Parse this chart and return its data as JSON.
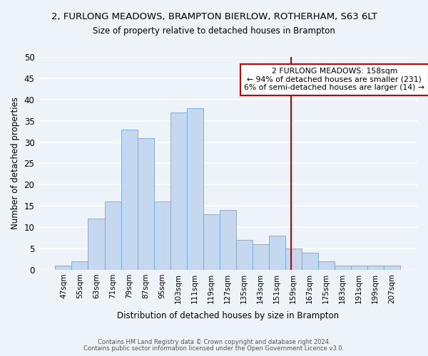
{
  "title": "2, FURLONG MEADOWS, BRAMPTON BIERLOW, ROTHERHAM, S63 6LT",
  "subtitle": "Size of property relative to detached houses in Brampton",
  "xlabel": "Distribution of detached houses by size in Brampton",
  "ylabel": "Number of detached properties",
  "bar_color": "#c5d8f0",
  "bar_edge_color": "#6eaadb",
  "bg_color": "#eef2f9",
  "grid_color": "#ffffff",
  "categories": [
    "47sqm",
    "55sqm",
    "63sqm",
    "71sqm",
    "79sqm",
    "87sqm",
    "95sqm",
    "103sqm",
    "111sqm",
    "119sqm",
    "127sqm",
    "135sqm",
    "143sqm",
    "151sqm",
    "159sqm",
    "167sqm",
    "175sqm",
    "183sqm",
    "191sqm",
    "199sqm",
    "207sqm"
  ],
  "values": [
    1,
    2,
    12,
    16,
    33,
    31,
    16,
    37,
    38,
    13,
    14,
    7,
    6,
    8,
    5,
    4,
    2,
    1,
    1,
    1,
    1
  ],
  "vline_color": "#cc0000",
  "annotation_text": "2 FURLONG MEADOWS: 158sqm\n← 94% of detached houses are smaller (231)\n6% of semi-detached houses are larger (14) →",
  "annotation_box_color": "white",
  "annotation_edge_color": "#cc0000",
  "ylim": [
    0,
    50
  ],
  "yticks": [
    0,
    5,
    10,
    15,
    20,
    25,
    30,
    35,
    40,
    45,
    50
  ],
  "footer_line1": "Contains HM Land Registry data © Crown copyright and database right 2024.",
  "footer_line2": "Contains public sector information licensed under the Open Government Licence v3.0.",
  "vline_idx": 13.875
}
